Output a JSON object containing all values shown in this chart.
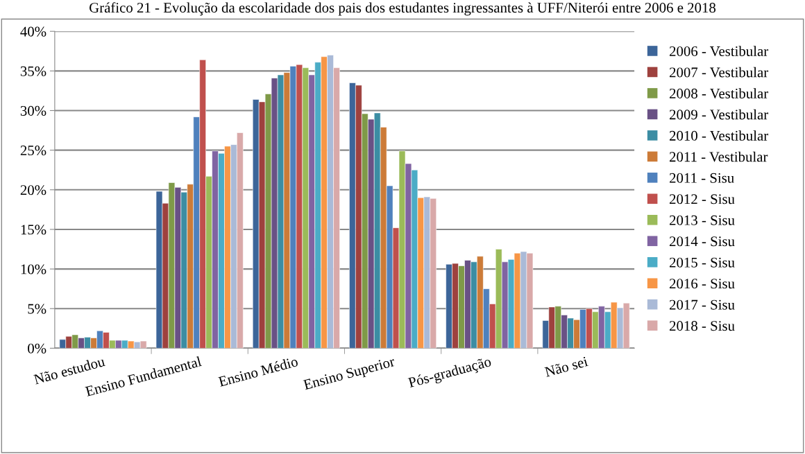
{
  "chart_data": {
    "type": "bar",
    "title": "Gráfico 21 - Evolução da escolaridade dos pais dos estudantes ingressantes à UFF/Niterói entre 2006 e 2018",
    "categories": [
      "Não estudou",
      "Ensino Fundamental",
      "Ensino Médio",
      "Ensino Superior",
      "Pós-graduação",
      "Não sei"
    ],
    "series": [
      {
        "name": "2006 - Vestibular",
        "color": "#3c6599",
        "values": [
          1.1,
          19.8,
          31.4,
          33.5,
          10.6,
          3.5
        ]
      },
      {
        "name": "2007 - Vestibular",
        "color": "#9e413e",
        "values": [
          1.5,
          18.3,
          31.1,
          33.2,
          10.7,
          5.2
        ]
      },
      {
        "name": "2008 - Vestibular",
        "color": "#7f9a48",
        "values": [
          1.7,
          20.9,
          32.1,
          29.6,
          10.4,
          5.3
        ]
      },
      {
        "name": "2009 - Vestibular",
        "color": "#695185",
        "values": [
          1.3,
          20.3,
          34.1,
          28.9,
          11.1,
          4.2
        ]
      },
      {
        "name": "2010 - Vestibular",
        "color": "#3c8da3",
        "values": [
          1.4,
          19.7,
          34.5,
          29.7,
          10.9,
          3.8
        ]
      },
      {
        "name": "2011 - Vestibular",
        "color": "#cc7b38",
        "values": [
          1.3,
          20.7,
          34.8,
          27.9,
          11.6,
          3.6
        ]
      },
      {
        "name": "2011 - Sisu",
        "color": "#4f81bd",
        "values": [
          2.2,
          29.2,
          35.6,
          20.5,
          7.5,
          4.9
        ]
      },
      {
        "name": "2012 - Sisu",
        "color": "#c0504d",
        "values": [
          2.0,
          36.4,
          35.8,
          15.2,
          5.6,
          5.0
        ]
      },
      {
        "name": "2013 - Sisu",
        "color": "#9bbb59",
        "values": [
          1.0,
          21.7,
          35.4,
          24.9,
          12.5,
          4.6
        ]
      },
      {
        "name": "2014 - Sisu",
        "color": "#8064a2",
        "values": [
          1.0,
          24.9,
          34.5,
          23.3,
          10.9,
          5.3
        ]
      },
      {
        "name": "2015 - Sisu",
        "color": "#4bacc6",
        "values": [
          1.0,
          24.6,
          36.1,
          22.5,
          11.2,
          4.6
        ]
      },
      {
        "name": "2016 - Sisu",
        "color": "#f79646",
        "values": [
          0.9,
          25.5,
          36.8,
          19.0,
          12.0,
          5.8
        ]
      },
      {
        "name": "2017 - Sisu",
        "color": "#aabad7",
        "values": [
          0.8,
          25.7,
          37.0,
          19.1,
          12.2,
          5.1
        ]
      },
      {
        "name": "2018 - Sisu",
        "color": "#d9a9a9",
        "values": [
          0.9,
          27.2,
          35.4,
          18.9,
          12.0,
          5.7
        ]
      }
    ],
    "ylim": [
      0,
      40
    ],
    "yticks": [
      {
        "value": 0,
        "label": "0%"
      },
      {
        "value": 5,
        "label": "5%"
      },
      {
        "value": 10,
        "label": "10%"
      },
      {
        "value": 15,
        "label": "15%"
      },
      {
        "value": 20,
        "label": "20%"
      },
      {
        "value": 25,
        "label": "25%"
      },
      {
        "value": 30,
        "label": "30%"
      },
      {
        "value": 35,
        "label": "35%"
      },
      {
        "value": 40,
        "label": "40%"
      }
    ],
    "grid": "y",
    "legend": "right"
  }
}
